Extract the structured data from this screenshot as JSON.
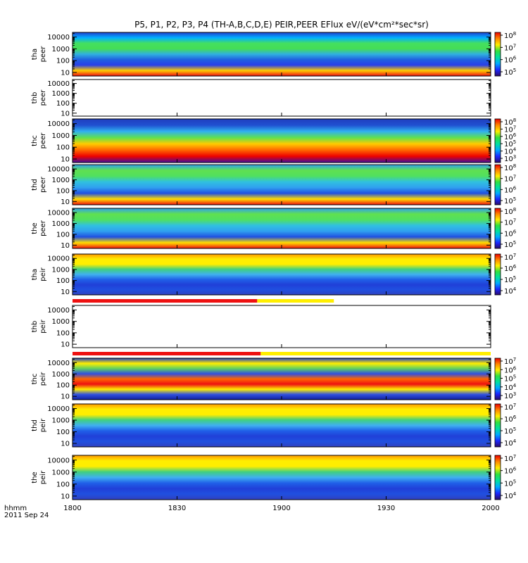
{
  "chart_data": {
    "type": "heatmap",
    "title": "P5, P1, P2, P3, P4 (TH-A,B,C,D,E) PEIR,PEER EFlux eV/(eV*cm²*sec*sr)",
    "x_tick_labels": [
      "1800",
      "1830",
      "1900",
      "1930",
      "2000"
    ],
    "x_range_hhmm": [
      "1800",
      "2000"
    ],
    "x_axis_caption": "hhmm",
    "date_label": "2011 Sep 24",
    "y_scale": "log",
    "y_tick_labels": [
      "10",
      "100",
      "1000",
      "10000"
    ],
    "panels": [
      {
        "label": [
          "tha",
          "peer"
        ],
        "has_data": true,
        "colorbar": [
          {
            "base": "10",
            "exp": "8"
          },
          {
            "base": "10",
            "exp": "7"
          },
          {
            "base": "10",
            "exp": "6"
          },
          {
            "base": "10",
            "exp": "5"
          }
        ]
      },
      {
        "label": [
          "thb",
          "peer"
        ],
        "has_data": false,
        "colorbar": []
      },
      {
        "label": [
          "thc",
          "peer"
        ],
        "has_data": true,
        "colorbar": [
          {
            "base": "10",
            "exp": "8"
          },
          {
            "base": "10",
            "exp": "7"
          },
          {
            "base": "10",
            "exp": "6"
          },
          {
            "base": "10",
            "exp": "5"
          },
          {
            "base": "10",
            "exp": "4"
          },
          {
            "base": "10",
            "exp": "3"
          }
        ]
      },
      {
        "label": [
          "thd",
          "peer"
        ],
        "has_data": true,
        "colorbar": [
          {
            "base": "10",
            "exp": "8"
          },
          {
            "base": "10",
            "exp": "7"
          },
          {
            "base": "10",
            "exp": "6"
          },
          {
            "base": "10",
            "exp": "5"
          }
        ]
      },
      {
        "label": [
          "the",
          "peer"
        ],
        "has_data": true,
        "colorbar": [
          {
            "base": "10",
            "exp": "8"
          },
          {
            "base": "10",
            "exp": "7"
          },
          {
            "base": "10",
            "exp": "6"
          },
          {
            "base": "10",
            "exp": "5"
          }
        ]
      },
      {
        "label": [
          "tha",
          "peir"
        ],
        "has_data": true,
        "colorbar": [
          {
            "base": "10",
            "exp": "7"
          },
          {
            "base": "10",
            "exp": "6"
          },
          {
            "base": "10",
            "exp": "5"
          },
          {
            "base": "10",
            "exp": "4"
          }
        ]
      },
      {
        "label": [
          "thb",
          "peir"
        ],
        "has_data": false,
        "colorbar": []
      },
      {
        "label": [
          "thc",
          "peir"
        ],
        "has_data": true,
        "colorbar": [
          {
            "base": "10",
            "exp": "7"
          },
          {
            "base": "10",
            "exp": "6"
          },
          {
            "base": "10",
            "exp": "5"
          },
          {
            "base": "10",
            "exp": "4"
          },
          {
            "base": "10",
            "exp": "3"
          }
        ]
      },
      {
        "label": [
          "thd",
          "peir"
        ],
        "has_data": true,
        "colorbar": [
          {
            "base": "10",
            "exp": "7"
          },
          {
            "base": "10",
            "exp": "6"
          },
          {
            "base": "10",
            "exp": "5"
          },
          {
            "base": "10",
            "exp": "4"
          }
        ]
      },
      {
        "label": [
          "the",
          "peir"
        ],
        "has_data": true,
        "colorbar": [
          {
            "base": "10",
            "exp": "7"
          },
          {
            "base": "10",
            "exp": "6"
          },
          {
            "base": "10",
            "exp": "5"
          },
          {
            "base": "10",
            "exp": "4"
          }
        ]
      }
    ],
    "mode_bars": [
      {
        "after_panel": 5,
        "segments": [
          {
            "color": "#ee1111",
            "start_hhmm": "1800",
            "end_hhmm": "1853"
          },
          {
            "color": "#ffee00",
            "start_hhmm": "1853",
            "end_hhmm": "1915"
          }
        ]
      },
      {
        "after_panel": 6,
        "segments": [
          {
            "color": "#ee1111",
            "start_hhmm": "1800",
            "end_hhmm": "1854"
          },
          {
            "color": "#ffee00",
            "start_hhmm": "1854",
            "end_hhmm": "2000"
          }
        ]
      }
    ],
    "colors": {
      "background": "#ffffff",
      "axes": "#000000"
    }
  }
}
